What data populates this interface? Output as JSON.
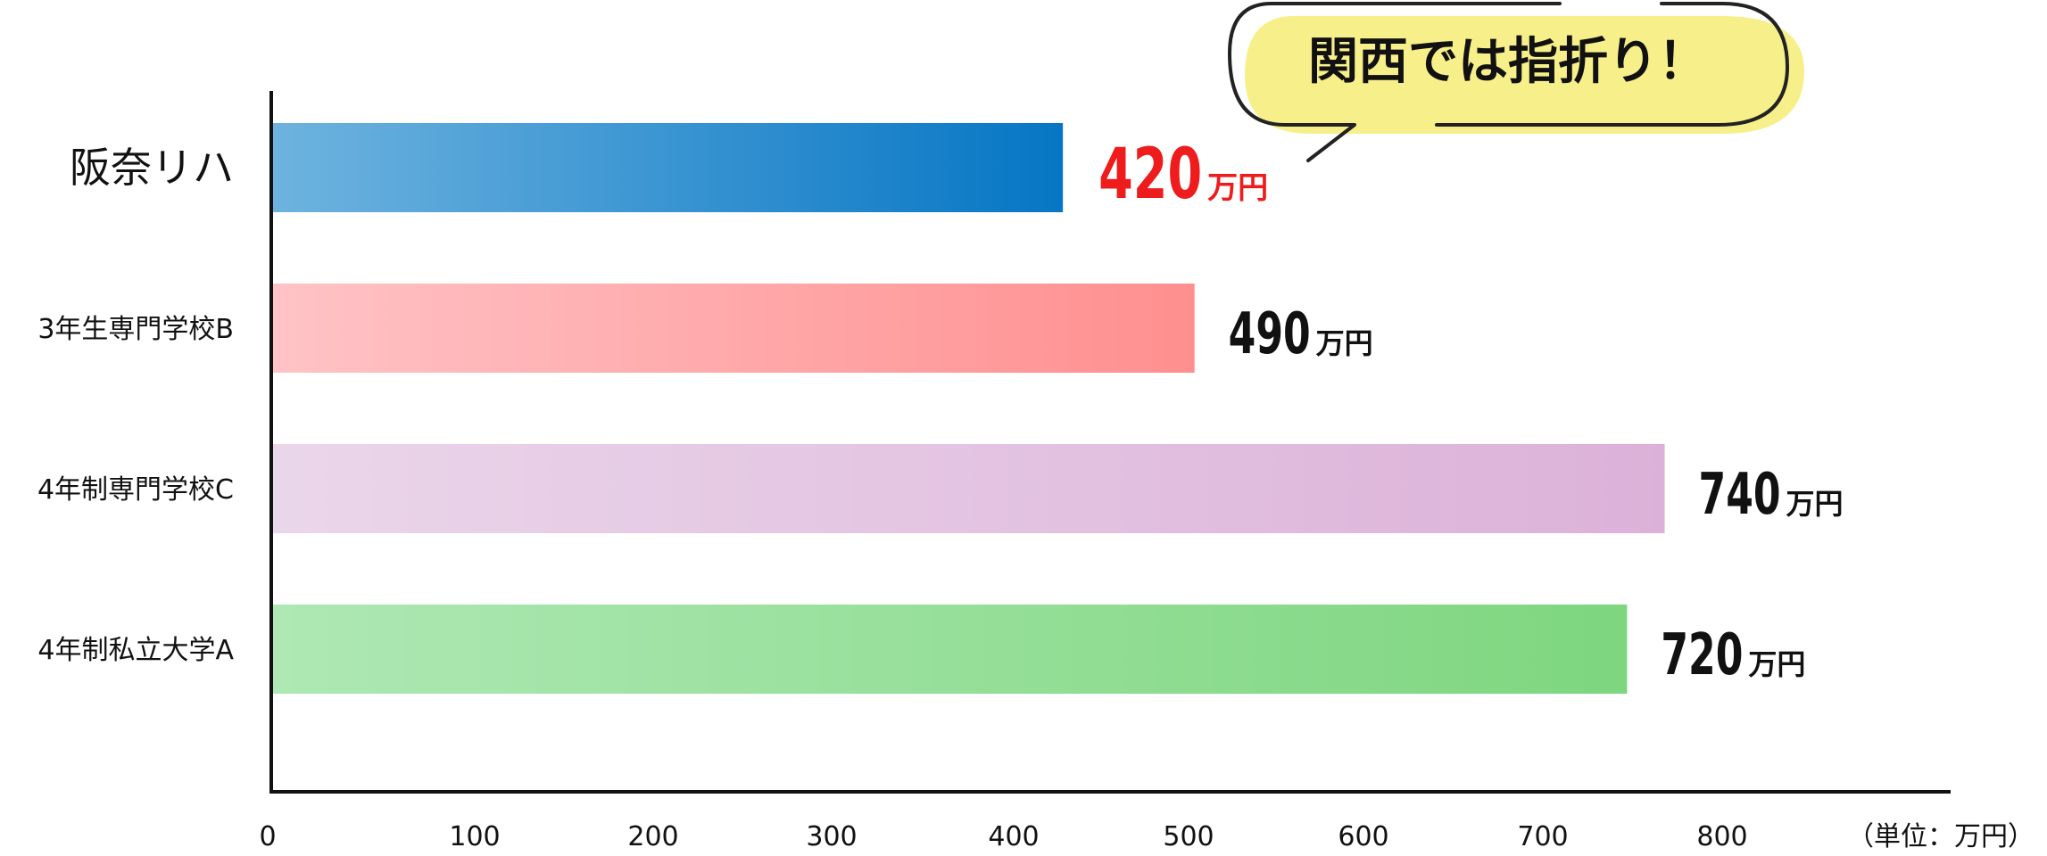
{
  "chart_data": {
    "type": "bar",
    "orientation": "horizontal",
    "categories": [
      "阪奈リハ",
      "3年生専門学校B",
      "4年制専門学校C",
      "4年制私立大学A"
    ],
    "values": [
      420,
      490,
      740,
      720
    ],
    "value_labels": [
      "420",
      "490",
      "740",
      "720"
    ],
    "value_unit": "万円",
    "unit_note": "（単位：万円）",
    "xlim": [
      0,
      800
    ],
    "xticks": [
      "0",
      "100",
      "200",
      "300",
      "400",
      "500",
      "600",
      "700",
      "800"
    ],
    "grid": false,
    "highlight_index": 0,
    "callout": "関西では指折り！",
    "colors": {
      "highlight_text": "#ee1c1c",
      "bars": [
        [
          "#6eb3df",
          "#0676c4"
        ],
        [
          "#ffc3c6",
          "#ff8f8f"
        ],
        [
          "#ead6ea",
          "#dcb1d9"
        ],
        [
          "#aee8b4",
          "#7ed67f"
        ]
      ],
      "callout_fill": "#f7f08a"
    }
  }
}
